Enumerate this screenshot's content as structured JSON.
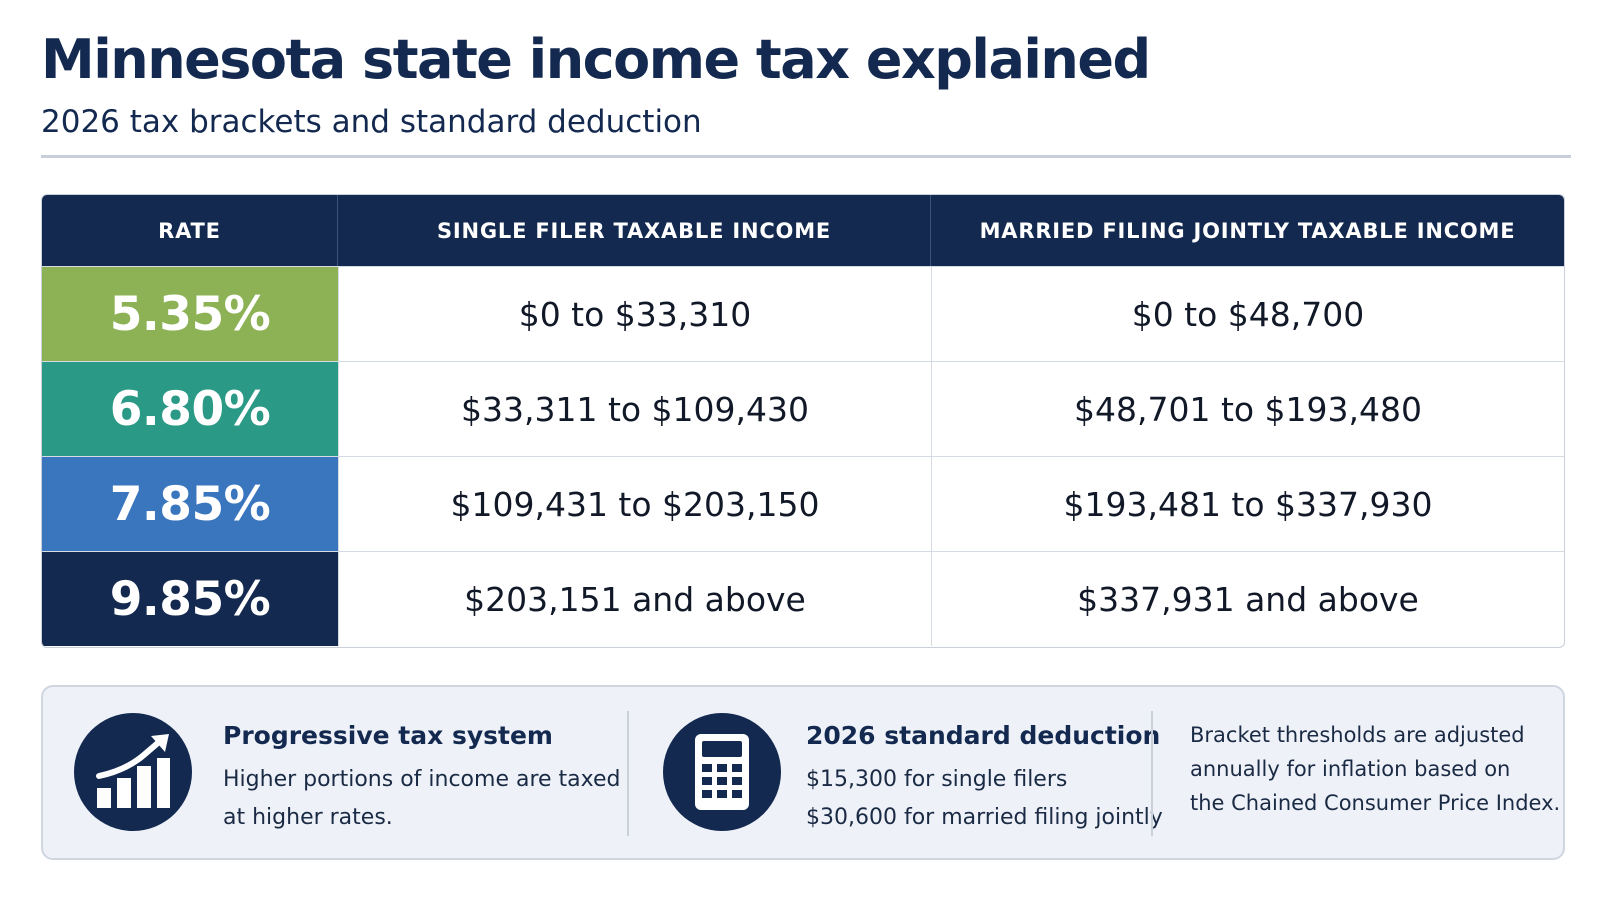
{
  "header": {
    "title": "Minnesota state income tax explained",
    "subtitle": "2026 tax brackets and standard deduction"
  },
  "table": {
    "columns": [
      "RATE",
      "SINGLE FILER TAXABLE INCOME",
      "MARRIED FILING JOINTLY TAXABLE INCOME"
    ],
    "rows": [
      {
        "rate": "5.35%",
        "single": "$0 to $33,310",
        "married": "$0 to $48,700",
        "color": "#8db255"
      },
      {
        "rate": "6.80%",
        "single": "$33,311 to $109,430",
        "married": "$48,701 to $193,480",
        "color": "#2a9a86"
      },
      {
        "rate": "7.85%",
        "single": "$109,431 to $203,150",
        "married": "$193,481 to $337,930",
        "color": "#3a76be"
      },
      {
        "rate": "9.85%",
        "single": "$203,151 and above",
        "married": "$337,931 and above",
        "color": "#13294f"
      }
    ]
  },
  "info": {
    "progressive": {
      "icon": "rising-bar-chart-icon",
      "title": "Progressive tax system",
      "lines": [
        "Higher portions of income are taxed",
        "at higher rates."
      ]
    },
    "deduction": {
      "icon": "calculator-icon",
      "title": "2026 standard deduction",
      "lines": [
        "$15,300 for single filers",
        "$30,600 for married filing jointly"
      ]
    },
    "note": {
      "lines": [
        "Bracket thresholds are adjusted",
        "annually for inflation based on",
        "the Chained Consumer Price Index."
      ]
    }
  },
  "colors": {
    "navy": "#13294f",
    "rule": "#c8cfd9",
    "panel": "#eef2f8"
  }
}
